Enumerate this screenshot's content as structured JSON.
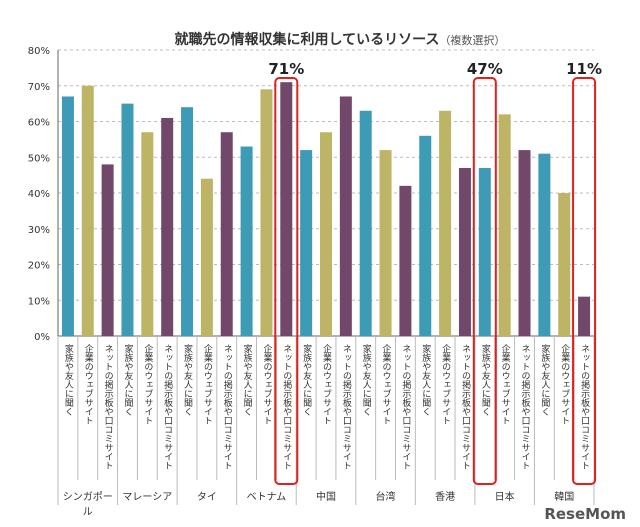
{
  "chart_data": {
    "type": "bar",
    "title": "就職先の情報収集に利用しているリソース",
    "subtitle": "（複数選択）",
    "categories": [
      "シンガポール",
      "マレーシア",
      "タイ",
      "ベトナム",
      "中国",
      "台湾",
      "香港",
      "日本",
      "韓国"
    ],
    "series": [
      {
        "name": "家族や友人に聞く",
        "color": "#3d9bb5",
        "values": [
          67,
          65,
          64,
          53,
          52,
          63,
          56,
          47,
          51
        ]
      },
      {
        "name": "企業のウェブサイト",
        "color": "#bdb466",
        "values": [
          70,
          57,
          44,
          69,
          57,
          52,
          63,
          62,
          40
        ]
      },
      {
        "name": "ネットの掲示板や口コミサイト",
        "color": "#71486a",
        "values": [
          48,
          61,
          57,
          71,
          67,
          42,
          47,
          52,
          11
        ]
      }
    ],
    "ylim": [
      0,
      80
    ],
    "yticks": [
      "0%",
      "10%",
      "20%",
      "30%",
      "40%",
      "50%",
      "60%",
      "70%",
      "80%"
    ],
    "grid": true,
    "highlights": [
      {
        "category": "ベトナム",
        "series": 2,
        "label": "71%"
      },
      {
        "category": "日本",
        "series": 0,
        "label": "47%"
      },
      {
        "category": "韓国",
        "series": 2,
        "label": "11%"
      }
    ],
    "highlight_color": "#e02020"
  },
  "logo": "ReseMom"
}
